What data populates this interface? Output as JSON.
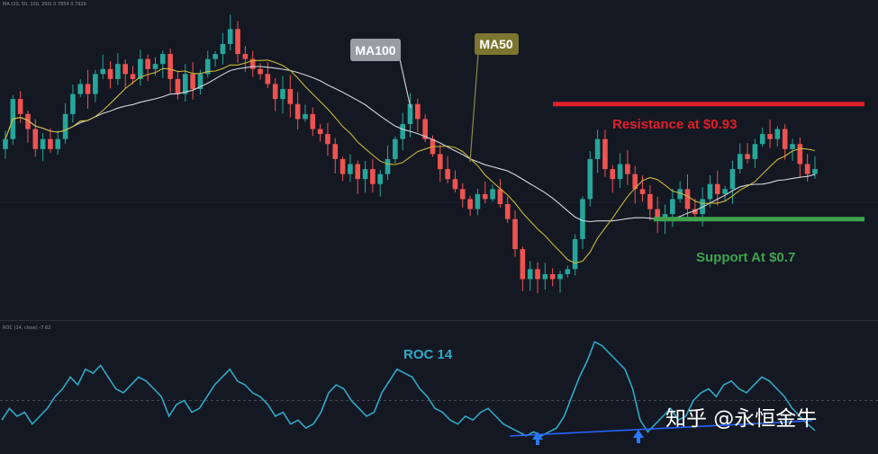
{
  "chart_data": [
    {
      "type": "candlestick",
      "header": "MA (20, 50, 100, 200)  0.7854  0.7929",
      "ylim": [
        0.5,
        1.12
      ],
      "bullish_color": "#26a69a",
      "bearish_color": "#ef5350",
      "ma50_color": "#c9b83a",
      "ma100_color": "#d5d6dc",
      "annotations": [
        {
          "label": "MA100",
          "background": "#9a9ca4",
          "text_color": "#ffffff"
        },
        {
          "label": "MA50",
          "background": "#7d7531",
          "text_color": "#ffffff"
        }
      ],
      "resistance": {
        "label": "Resistance at $0.93",
        "value": 0.93,
        "color": "#e0202a"
      },
      "support": {
        "label": "Support At $0.7",
        "value": 0.7,
        "color": "#3fa34d"
      },
      "candles_close": [
        0.86,
        0.94,
        0.91,
        0.88,
        0.84,
        0.86,
        0.84,
        0.86,
        0.91,
        0.95,
        0.97,
        0.95,
        0.99,
        1.0,
        0.98,
        1.01,
        0.99,
        0.98,
        1.02,
        1.0,
        1.01,
        1.03,
        0.98,
        0.95,
        0.99,
        0.96,
        0.99,
        1.02,
        1.03,
        1.05,
        1.08,
        1.03,
        1.02,
        1.0,
        0.99,
        0.97,
        0.94,
        0.96,
        0.93,
        0.9,
        0.91,
        0.88,
        0.87,
        0.85,
        0.82,
        0.79,
        0.81,
        0.78,
        0.8,
        0.77,
        0.79,
        0.82,
        0.86,
        0.89,
        0.93,
        0.9,
        0.86,
        0.83,
        0.8,
        0.78,
        0.76,
        0.74,
        0.72,
        0.75,
        0.74,
        0.76,
        0.73,
        0.7,
        0.64,
        0.58,
        0.6,
        0.58,
        0.59,
        0.58,
        0.59,
        0.6,
        0.66,
        0.74,
        0.82,
        0.86,
        0.8,
        0.78,
        0.81,
        0.79,
        0.76,
        0.75,
        0.72,
        0.7,
        0.71,
        0.74,
        0.76,
        0.72,
        0.71,
        0.74,
        0.77,
        0.75,
        0.76,
        0.8,
        0.83,
        0.82,
        0.85,
        0.87,
        0.86,
        0.88,
        0.84,
        0.85,
        0.81,
        0.79,
        0.8
      ]
    },
    {
      "type": "line",
      "header": "ROC (14, close)  -7.62",
      "title": "ROC 14",
      "color": "#2fa9c7",
      "zero_line_color": "#4a4f5c",
      "divergence_line_color": "#2962ff",
      "arrow_color": "#2979ff",
      "values": [
        -5,
        -2,
        -4,
        -3,
        -6,
        -4,
        -2,
        1,
        3,
        6,
        4,
        8,
        7,
        9,
        6,
        3,
        2,
        4,
        6,
        5,
        3,
        1,
        -4,
        -1,
        0,
        -3,
        -2,
        1,
        4,
        6,
        8,
        5,
        4,
        2,
        1,
        -1,
        -4,
        -3,
        -6,
        -5,
        -7,
        -6,
        -3,
        2,
        4,
        3,
        0,
        -2,
        -4,
        -3,
        2,
        5,
        8,
        7,
        6,
        3,
        1,
        -2,
        -3,
        -5,
        -6,
        -4,
        -5,
        -3,
        -2,
        -4,
        -6,
        -7,
        -8,
        -9,
        -8,
        -9,
        -8,
        -7,
        -4,
        1,
        6,
        10,
        15,
        14,
        12,
        10,
        8,
        3,
        -5,
        -8,
        -6,
        -4,
        -2,
        -5,
        -4,
        0,
        2,
        3,
        1,
        4,
        5,
        3,
        2,
        4,
        6,
        5,
        3,
        1,
        -2,
        -4,
        -6,
        -7.62
      ]
    }
  ],
  "watermark": "知乎 @永恒金牛"
}
